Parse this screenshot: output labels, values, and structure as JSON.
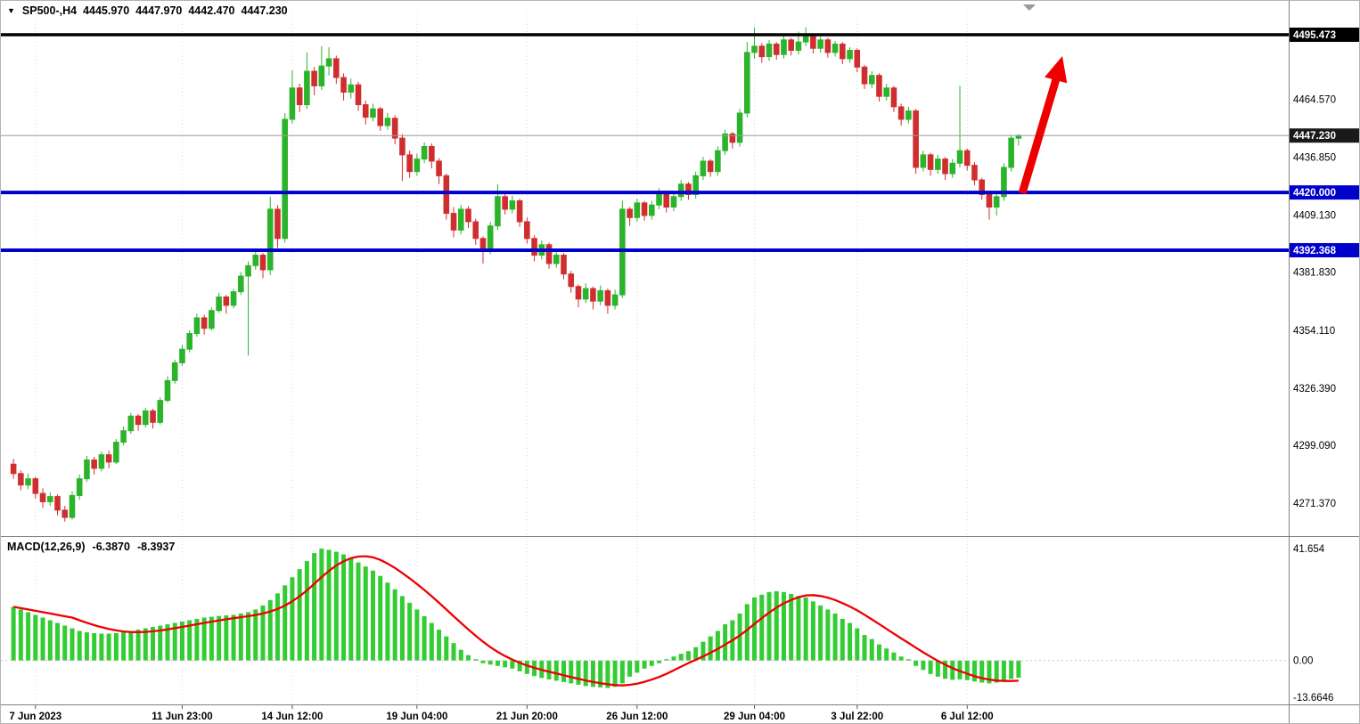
{
  "header": {
    "symbol_period": "SP500-,H4",
    "open": "4445.970",
    "high": "4447.970",
    "low": "4442.470",
    "close": "4447.230"
  },
  "indicator": {
    "label": "MACD(12,26,9)",
    "macd_value": "-6.3870",
    "signal_value": "-8.3937"
  },
  "colors": {
    "bull": "#2bb42b",
    "bear": "#d02e2e",
    "histogram": "#33cc33",
    "signal": "#ee0000",
    "line_blue": "#0000cd",
    "line_black": "#000000",
    "current_price_line": "#9a9a9a",
    "current_price_tag": "#1a1a1a",
    "arrow": "#ee0000",
    "grid": "#d9d9d9",
    "axis_border": "#808080",
    "axis_text": "#000000",
    "tag_text": "#ffffff"
  },
  "chart_data": {
    "type": "candlestick",
    "symbol": "SP500-",
    "timeframe": "H4",
    "price_range": [
      4256,
      4504
    ],
    "candles": [
      [
        4290,
        4292.5,
        4283,
        4285.5
      ],
      [
        4285.5,
        4287,
        4277.5,
        4280
      ],
      [
        4280,
        4285.5,
        4278,
        4283
      ],
      [
        4283,
        4284,
        4273.5,
        4276
      ],
      [
        4276,
        4278.5,
        4269,
        4272
      ],
      [
        4272,
        4276.5,
        4270,
        4274.5
      ],
      [
        4274.5,
        4275.5,
        4265.5,
        4268
      ],
      [
        4268,
        4270,
        4262.5,
        4264.5
      ],
      [
        4264.5,
        4277,
        4263.5,
        4275
      ],
      [
        4275,
        4285,
        4273,
        4283
      ],
      [
        4283,
        4294,
        4281.5,
        4292
      ],
      [
        4292,
        4293.5,
        4285,
        4288
      ],
      [
        4288,
        4296,
        4286.5,
        4294.5
      ],
      [
        4294.5,
        4296.5,
        4288,
        4291
      ],
      [
        4291,
        4302,
        4290,
        4300.5
      ],
      [
        4300.5,
        4308,
        4299,
        4306
      ],
      [
        4306,
        4314.5,
        4304.5,
        4313
      ],
      [
        4313,
        4314,
        4306,
        4309
      ],
      [
        4309,
        4317,
        4307.5,
        4315.5
      ],
      [
        4315.5,
        4316.5,
        4307,
        4310
      ],
      [
        4310,
        4322,
        4309,
        4320.5
      ],
      [
        4320.5,
        4332,
        4319.5,
        4330
      ],
      [
        4330,
        4340,
        4328.5,
        4338.5
      ],
      [
        4338.5,
        4347,
        4337,
        4345
      ],
      [
        4345,
        4354,
        4343.5,
        4352.5
      ],
      [
        4352.5,
        4362,
        4351,
        4360
      ],
      [
        4360,
        4361.5,
        4352,
        4355
      ],
      [
        4355,
        4365,
        4354,
        4363.5
      ],
      [
        4363.5,
        4372,
        4362.5,
        4370
      ],
      [
        4370,
        4371,
        4362,
        4366
      ],
      [
        4366,
        4374,
        4364.5,
        4372.5
      ],
      [
        4372.5,
        4382,
        4371,
        4380
      ],
      [
        4380,
        4387,
        4342,
        4385
      ],
      [
        4385,
        4391.5,
        4383,
        4390
      ],
      [
        4390,
        4391,
        4379,
        4383
      ],
      [
        4383,
        4418,
        4380.5,
        4412
      ],
      [
        4412,
        4414,
        4393.5,
        4398
      ],
      [
        4398,
        4458,
        4396,
        4455
      ],
      [
        4455,
        4478.5,
        4453,
        4470
      ],
      [
        4470,
        4472,
        4458.5,
        4462
      ],
      [
        4462,
        4487,
        4460,
        4478
      ],
      [
        4478,
        4480,
        4466.5,
        4471
      ],
      [
        4471,
        4490,
        4469,
        4480.5
      ],
      [
        4480.5,
        4489.5,
        4476,
        4484
      ],
      [
        4484,
        4485.5,
        4472,
        4475
      ],
      [
        4475,
        4477,
        4464,
        4468
      ],
      [
        4468,
        4474.5,
        4465,
        4471.5
      ],
      [
        4471.5,
        4473,
        4459,
        4462
      ],
      [
        4462,
        4464,
        4452.5,
        4456
      ],
      [
        4456,
        4462.5,
        4454,
        4460
      ],
      [
        4460,
        4461,
        4449.5,
        4452
      ],
      [
        4452,
        4458,
        4450,
        4455.5
      ],
      [
        4455.5,
        4457,
        4443,
        4446
      ],
      [
        4446,
        4448,
        4425.5,
        4438
      ],
      [
        4438,
        4440,
        4427,
        4430
      ],
      [
        4430,
        4438.5,
        4428,
        4436
      ],
      [
        4436,
        4444,
        4434,
        4442
      ],
      [
        4442,
        4443.5,
        4431.5,
        4435
      ],
      [
        4435,
        4436.5,
        4424,
        4428
      ],
      [
        4428,
        4429,
        4407,
        4410
      ],
      [
        4410,
        4413,
        4398.5,
        4402
      ],
      [
        4402,
        4414,
        4400,
        4412
      ],
      [
        4412,
        4413.5,
        4403,
        4406
      ],
      [
        4406,
        4407.5,
        4395,
        4398
      ],
      [
        4398,
        4399,
        4386,
        4392
      ],
      [
        4392,
        4406,
        4390.5,
        4404
      ],
      [
        4404,
        4424,
        4402,
        4418
      ],
      [
        4418,
        4420,
        4409.5,
        4412
      ],
      [
        4412,
        4418.5,
        4410,
        4416
      ],
      [
        4416,
        4417,
        4403.5,
        4406
      ],
      [
        4406,
        4408,
        4395.5,
        4398
      ],
      [
        4398,
        4399.5,
        4387,
        4390
      ],
      [
        4390,
        4397,
        4388,
        4395
      ],
      [
        4395,
        4396,
        4383.5,
        4386
      ],
      [
        4386,
        4392,
        4384,
        4390
      ],
      [
        4390,
        4391,
        4378.5,
        4381
      ],
      [
        4381,
        4382.5,
        4372,
        4375
      ],
      [
        4375,
        4376,
        4365,
        4369
      ],
      [
        4369,
        4376.5,
        4367,
        4374
      ],
      [
        4374,
        4375,
        4364,
        4368
      ],
      [
        4368,
        4375.5,
        4366,
        4373
      ],
      [
        4373,
        4374,
        4362,
        4366
      ],
      [
        4366,
        4373.5,
        4364,
        4371
      ],
      [
        4371,
        4416,
        4369.5,
        4412
      ],
      [
        4412,
        4413,
        4404,
        4408
      ],
      [
        4408,
        4417,
        4406,
        4415
      ],
      [
        4415,
        4416,
        4406.5,
        4409
      ],
      [
        4409,
        4416,
        4407,
        4414
      ],
      [
        4414,
        4422,
        4412,
        4420
      ],
      [
        4420,
        4421,
        4410.5,
        4413
      ],
      [
        4413,
        4420,
        4411,
        4418
      ],
      [
        4418,
        4426,
        4416,
        4424
      ],
      [
        4424,
        4425,
        4416.5,
        4419
      ],
      [
        4419,
        4430,
        4417,
        4428
      ],
      [
        4428,
        4437,
        4426,
        4435
      ],
      [
        4435,
        4436,
        4427.5,
        4430
      ],
      [
        4430,
        4442,
        4428,
        4440
      ],
      [
        4440,
        4450,
        4438,
        4448
      ],
      [
        4448,
        4449,
        4441,
        4444
      ],
      [
        4444,
        4460,
        4442,
        4458
      ],
      [
        4458,
        4492,
        4456,
        4487
      ],
      [
        4487,
        4499,
        4484,
        4490
      ],
      [
        4490,
        4491.5,
        4482,
        4485
      ],
      [
        4485,
        4493,
        4483,
        4491
      ],
      [
        4491,
        4492,
        4483.5,
        4486
      ],
      [
        4486,
        4495,
        4484,
        4493
      ],
      [
        4493,
        4494,
        4485.5,
        4488
      ],
      [
        4488,
        4497,
        4486,
        4492
      ],
      [
        4492,
        4499,
        4490,
        4495
      ],
      [
        4495,
        4496,
        4486.5,
        4489
      ],
      [
        4489,
        4494.5,
        4487,
        4493
      ],
      [
        4493,
        4494,
        4484.5,
        4487
      ],
      [
        4487,
        4492.5,
        4485,
        4491
      ],
      [
        4491,
        4492,
        4481.5,
        4484
      ],
      [
        4484,
        4489.5,
        4482,
        4488
      ],
      [
        4488,
        4489,
        4477.5,
        4480
      ],
      [
        4480,
        4481,
        4469.5,
        4472
      ],
      [
        4472,
        4478,
        4470,
        4476
      ],
      [
        4476,
        4477,
        4463.5,
        4466
      ],
      [
        4466,
        4472,
        4464,
        4470
      ],
      [
        4470,
        4471,
        4458.5,
        4461
      ],
      [
        4461,
        4462.5,
        4452,
        4455
      ],
      [
        4455,
        4461,
        4453,
        4459
      ],
      [
        4459,
        4460,
        4429,
        4432
      ],
      [
        4432,
        4440,
        4430,
        4438
      ],
      [
        4438,
        4439,
        4428,
        4431
      ],
      [
        4431,
        4438,
        4429,
        4436
      ],
      [
        4436,
        4437,
        4426,
        4429
      ],
      [
        4429,
        4436,
        4427,
        4434
      ],
      [
        4434,
        4471,
        4432,
        4440
      ],
      [
        4440,
        4441,
        4430.5,
        4433
      ],
      [
        4433,
        4434.5,
        4423.5,
        4426
      ],
      [
        4426,
        4427,
        4416.5,
        4419
      ],
      [
        4419,
        4420,
        4407,
        4413
      ],
      [
        4413,
        4419.5,
        4409,
        4418
      ],
      [
        4418,
        4434,
        4416,
        4432
      ],
      [
        4432,
        4447.5,
        4430,
        4446
      ],
      [
        4445.97,
        4447.97,
        4442.47,
        4447.23
      ]
    ],
    "price_axis_labels": [
      "4464.570",
      "4436.850",
      "4409.130",
      "4381.830",
      "4354.110",
      "4326.390",
      "4299.090",
      "4271.370"
    ],
    "h_lines": [
      {
        "label": "4495.473",
        "price": 4495.473,
        "color": "#000000",
        "width": 3.5
      },
      {
        "label": "4420.000",
        "price": 4420.0,
        "color": "#0000cd",
        "width": 4
      },
      {
        "label": "4392.368",
        "price": 4392.368,
        "color": "#0000cd",
        "width": 4
      }
    ],
    "current_price": {
      "label": "4447.230",
      "value": 4447.23
    },
    "time_labels": [
      {
        "label": "7 Jun 2023",
        "bar": 3
      },
      {
        "label": "11 Jun 23:00",
        "bar": 23
      },
      {
        "label": "14 Jun 12:00",
        "bar": 38
      },
      {
        "label": "19 Jun 04:00",
        "bar": 55
      },
      {
        "label": "21 Jun 20:00",
        "bar": 70
      },
      {
        "label": "26 Jun 12:00",
        "bar": 85
      },
      {
        "label": "29 Jun 04:00",
        "bar": 101
      },
      {
        "label": "3 Jul 22:00",
        "bar": 115
      },
      {
        "label": "6 Jul 12:00",
        "bar": 130
      }
    ],
    "macd": {
      "type": "bar",
      "label": "MACD(12,26,9)",
      "range": [
        -15,
        44
      ],
      "signal_period": 9,
      "current_macd": -6.387,
      "current_signal": -8.3937,
      "histogram": [
        20,
        19,
        18,
        17,
        16,
        15,
        14,
        13,
        12,
        11,
        10.5,
        10.2,
        10,
        10,
        10.2,
        10.6,
        11,
        11.5,
        12,
        12.5,
        13,
        13.5,
        14,
        14.5,
        15,
        15.5,
        16,
        16.3,
        16.6,
        16.8,
        17,
        17.5,
        18,
        19,
        20.5,
        22.5,
        25,
        28,
        31,
        34,
        37,
        40,
        41.654,
        41.2,
        40.5,
        39.5,
        38,
        36.5,
        35,
        33.5,
        31.5,
        29,
        26.5,
        24,
        21.5,
        19,
        16.5,
        14,
        11.5,
        9,
        6.5,
        4,
        2,
        0.5,
        -1,
        -1.5,
        -2,
        -2.5,
        -3,
        -4,
        -5,
        -5.8,
        -6.5,
        -7,
        -7.5,
        -8,
        -8.5,
        -9,
        -9.5,
        -9.8,
        -10,
        -10.2,
        -9.8,
        -8.5,
        -6,
        -4.5,
        -3,
        -2,
        -1,
        0.5,
        1.5,
        2.5,
        3.5,
        5,
        7,
        9,
        11,
        13.5,
        15,
        17.5,
        21,
        23.5,
        24.5,
        25.5,
        25.8,
        25.5,
        24.8,
        24,
        23.5,
        22,
        20.5,
        19,
        17.5,
        15.5,
        14,
        12,
        9.5,
        8,
        6,
        4.5,
        3,
        1.5,
        0.5,
        -2,
        -3.5,
        -5,
        -6,
        -6.8,
        -7.2,
        -7,
        -7.3,
        -7.8,
        -8.2,
        -8.5,
        -8.2,
        -7.5,
        -6.8,
        -6.387
      ],
      "axis_labels": [
        {
          "label": "41.654",
          "value": 41.654
        },
        {
          "label": "0.00",
          "value": 0
        },
        {
          "label": "-13.6646",
          "value": -13.6646
        }
      ]
    },
    "annotations": {
      "trend_arrow": {
        "direction": "up",
        "color": "#ee0000"
      }
    }
  }
}
